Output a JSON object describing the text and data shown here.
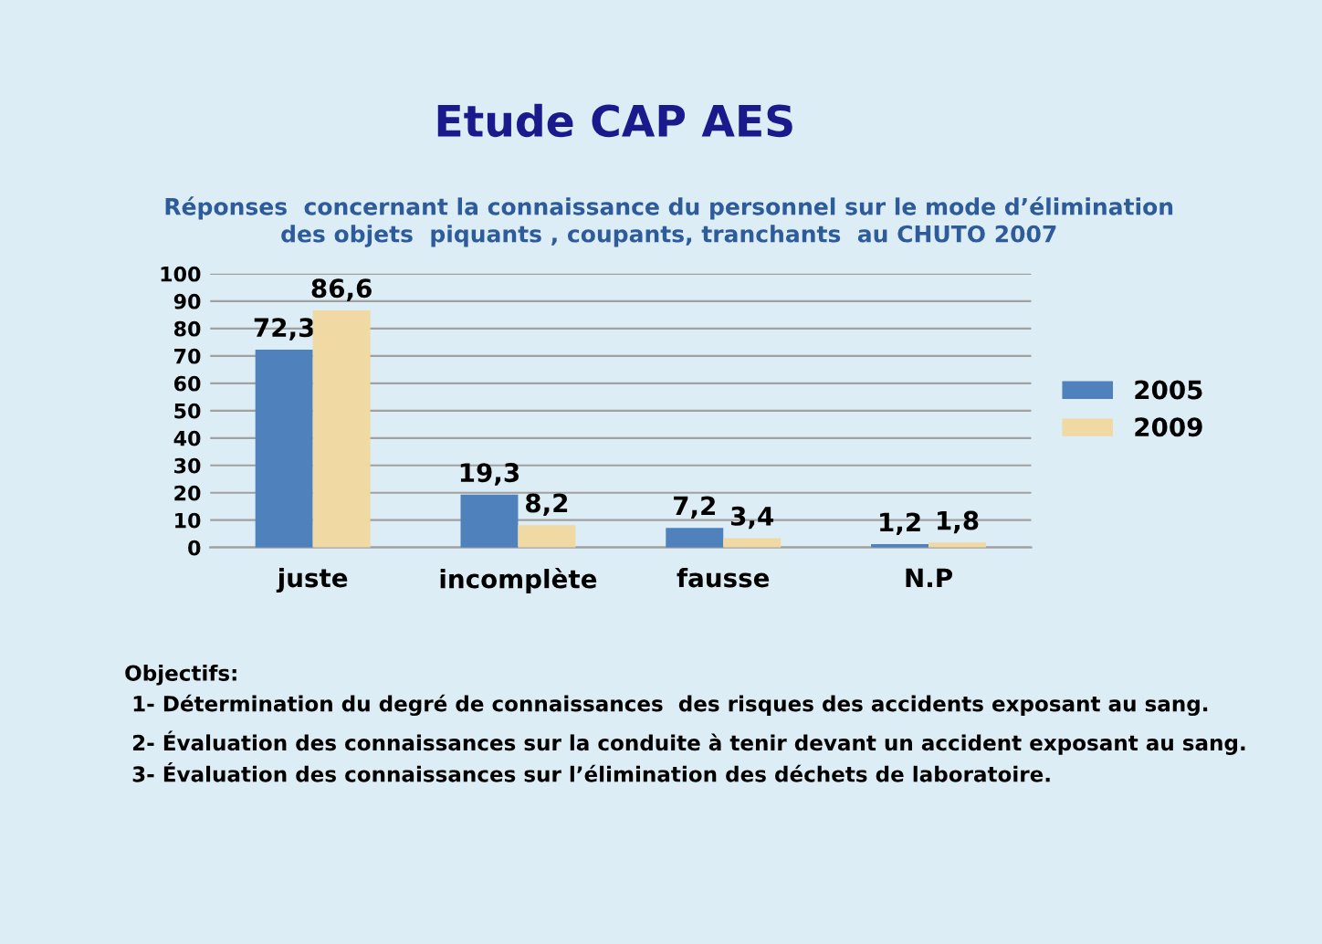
{
  "chart_data": {
    "type": "bar",
    "title": "Etude CAP AES",
    "subtitle": "Réponses  concernant la connaissance du personnel sur le mode d’élimination\ndes objets  piquants , coupants, tranchants  au CHUTO 2007",
    "categories": [
      "juste",
      "incomplète",
      "fausse",
      "N.P"
    ],
    "series": [
      {
        "name": "2005",
        "color": "#4f81bd",
        "values": [
          72.3,
          19.3,
          7.2,
          1.2
        ],
        "value_labels": [
          "72,3",
          "19,3",
          "7,2",
          "1,2"
        ]
      },
      {
        "name": "2009",
        "color": "#f0d9a2",
        "values": [
          86.6,
          8.2,
          3.4,
          1.8
        ],
        "value_labels": [
          "86,6",
          "8,2",
          "3,4",
          "1,8"
        ]
      }
    ],
    "ylim": [
      0,
      100
    ],
    "yticks": [
      0,
      10,
      20,
      30,
      40,
      50,
      60,
      70,
      80,
      90,
      100
    ],
    "grid": "y",
    "legend": "right",
    "annotations": [
      "Objectifs:",
      " 1- Détermination du degré de connaissances  des risques des accidents exposant au sang.",
      " 2- Évaluation des connaissances sur la conduite à tenir devant un accident exposant au sang.",
      " 3- Évaluation des connaissances sur l’élimination des déchets de laboratoire."
    ]
  }
}
